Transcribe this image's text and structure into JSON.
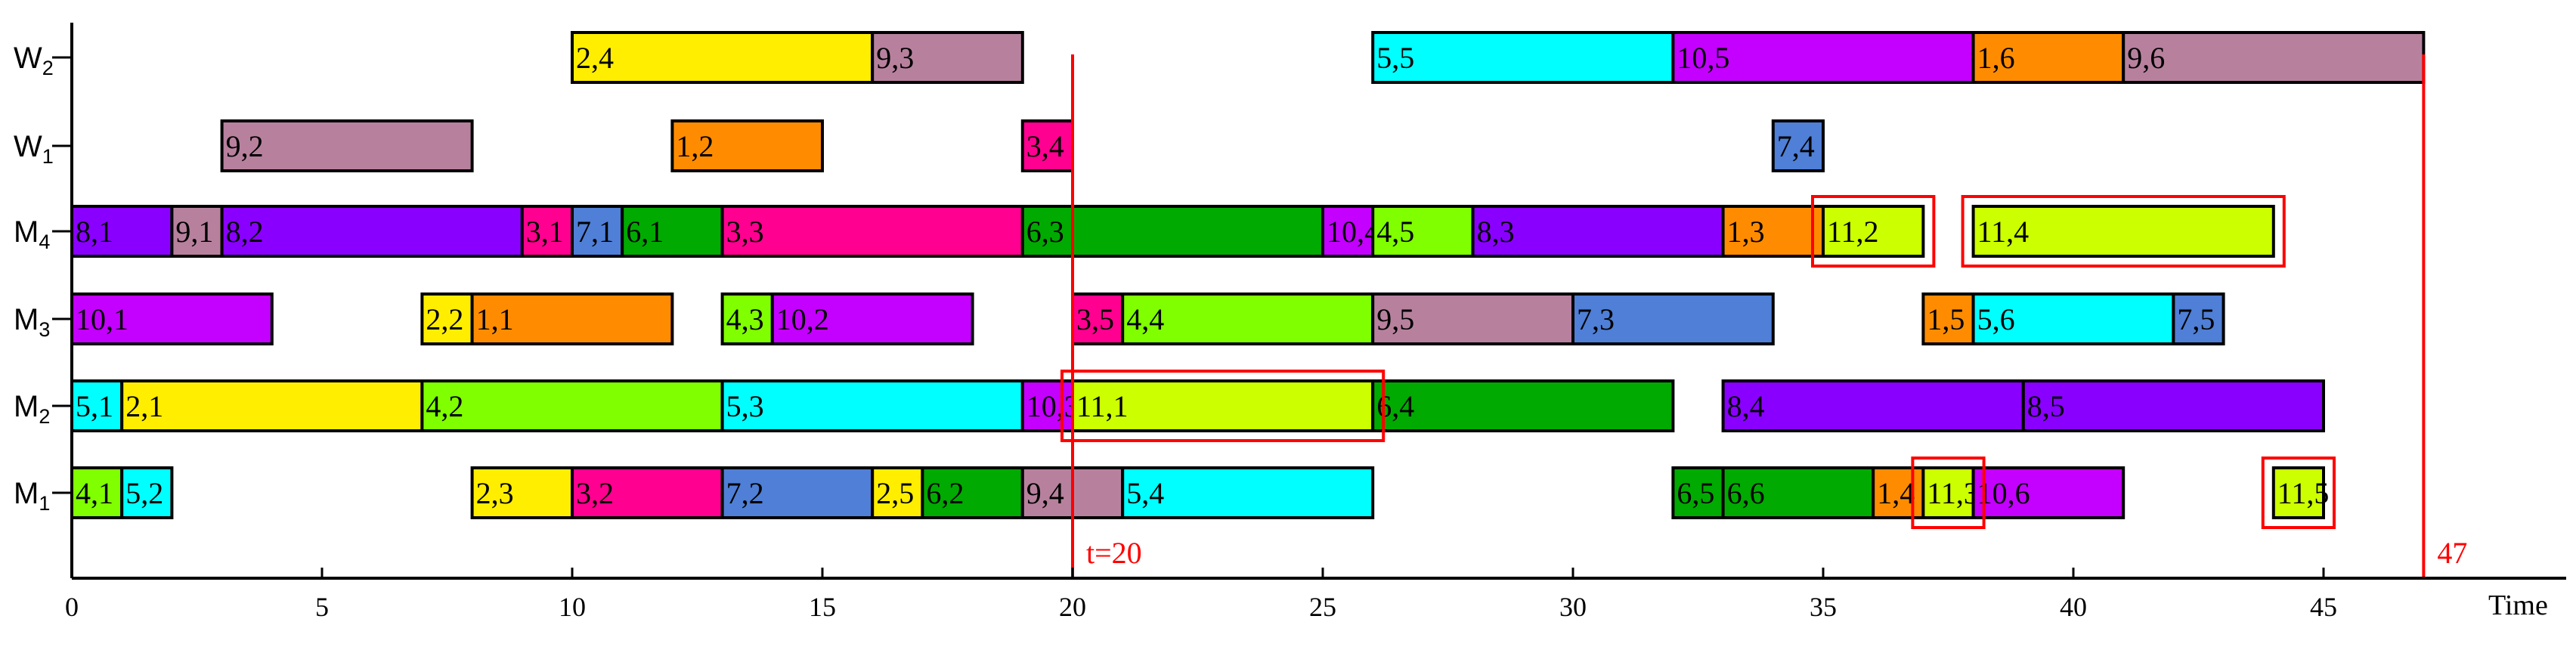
{
  "chart_data": {
    "type": "gantt",
    "xlabel": "Time",
    "xlim": [
      0,
      50
    ],
    "xticks": [
      0,
      5,
      10,
      15,
      20,
      25,
      30,
      35,
      40,
      45
    ],
    "rows": [
      {
        "id": "W2",
        "base": "W",
        "sub": "2"
      },
      {
        "id": "W1",
        "base": "W",
        "sub": "1"
      },
      {
        "id": "M4",
        "base": "M",
        "sub": "4"
      },
      {
        "id": "M3",
        "base": "M",
        "sub": "3"
      },
      {
        "id": "M2",
        "base": "M",
        "sub": "2"
      },
      {
        "id": "M1",
        "base": "M",
        "sub": "1"
      }
    ],
    "tasks": [
      {
        "row": "W2",
        "start": 10,
        "end": 16,
        "label": "2,4",
        "color": "#ffee00"
      },
      {
        "row": "W2",
        "start": 16,
        "end": 19,
        "label": "9,3",
        "color": "#b7819e"
      },
      {
        "row": "W2",
        "start": 26,
        "end": 32,
        "label": "5,5",
        "color": "#00ffff"
      },
      {
        "row": "W2",
        "start": 32,
        "end": 38,
        "label": "10,5",
        "color": "#c400ff"
      },
      {
        "row": "W2",
        "start": 38,
        "end": 41,
        "label": "1,6",
        "color": "#ff8c00"
      },
      {
        "row": "W2",
        "start": 41,
        "end": 47,
        "label": "9,6",
        "color": "#b7819e"
      },
      {
        "row": "W1",
        "start": 3,
        "end": 8,
        "label": "9,2",
        "color": "#b7819e"
      },
      {
        "row": "W1",
        "start": 12,
        "end": 15,
        "label": "1,2",
        "color": "#ff8c00"
      },
      {
        "row": "W1",
        "start": 19,
        "end": 20,
        "label": "3,4",
        "color": "#ff0090"
      },
      {
        "row": "W1",
        "start": 34,
        "end": 35,
        "label": "7,4",
        "color": "#4f7fd6"
      },
      {
        "row": "M4",
        "start": 0,
        "end": 2,
        "label": "8,1",
        "color": "#8a00ff"
      },
      {
        "row": "M4",
        "start": 2,
        "end": 3,
        "label": "9,1",
        "color": "#b7819e"
      },
      {
        "row": "M4",
        "start": 3,
        "end": 9,
        "label": "8,2",
        "color": "#8a00ff"
      },
      {
        "row": "M4",
        "start": 9,
        "end": 10,
        "label": "3,1",
        "color": "#ff0090"
      },
      {
        "row": "M4",
        "start": 10,
        "end": 11,
        "label": "7,1",
        "color": "#4f7fd6"
      },
      {
        "row": "M4",
        "start": 11,
        "end": 13,
        "label": "6,1",
        "color": "#00aa00"
      },
      {
        "row": "M4",
        "start": 13,
        "end": 19,
        "label": "3,3",
        "color": "#ff0090"
      },
      {
        "row": "M4",
        "start": 19,
        "end": 25,
        "label": "6,3",
        "color": "#00aa00"
      },
      {
        "row": "M4",
        "start": 25,
        "end": 26,
        "label": "10,4",
        "color": "#c400ff"
      },
      {
        "row": "M4",
        "start": 26,
        "end": 28,
        "label": "4,5",
        "color": "#80ff00"
      },
      {
        "row": "M4",
        "start": 28,
        "end": 33,
        "label": "8,3",
        "color": "#8a00ff"
      },
      {
        "row": "M4",
        "start": 33,
        "end": 35,
        "label": "1,3",
        "color": "#ff8c00"
      },
      {
        "row": "M4",
        "start": 35,
        "end": 37,
        "label": "11,2",
        "color": "#ccff00",
        "highlight": true
      },
      {
        "row": "M4",
        "start": 38,
        "end": 44,
        "label": "11,4",
        "color": "#ccff00",
        "highlight": true
      },
      {
        "row": "M3",
        "start": 0,
        "end": 4,
        "label": "10,1",
        "color": "#c400ff"
      },
      {
        "row": "M3",
        "start": 7,
        "end": 8,
        "label": "2,2",
        "color": "#ffee00"
      },
      {
        "row": "M3",
        "start": 8,
        "end": 12,
        "label": "1,1",
        "color": "#ff8c00"
      },
      {
        "row": "M3",
        "start": 13,
        "end": 14,
        "label": "4,3",
        "color": "#80ff00"
      },
      {
        "row": "M3",
        "start": 14,
        "end": 18,
        "label": "10,2",
        "color": "#c400ff"
      },
      {
        "row": "M3",
        "start": 20,
        "end": 21,
        "label": "3,5",
        "color": "#ff0090"
      },
      {
        "row": "M3",
        "start": 21,
        "end": 26,
        "label": "4,4",
        "color": "#80ff00"
      },
      {
        "row": "M3",
        "start": 26,
        "end": 30,
        "label": "9,5",
        "color": "#b7819e"
      },
      {
        "row": "M3",
        "start": 30,
        "end": 34,
        "label": "7,3",
        "color": "#4f7fd6"
      },
      {
        "row": "M3",
        "start": 37,
        "end": 38,
        "label": "1,5",
        "color": "#ff8c00"
      },
      {
        "row": "M3",
        "start": 38,
        "end": 42,
        "label": "5,6",
        "color": "#00ffff"
      },
      {
        "row": "M3",
        "start": 42,
        "end": 43,
        "label": "7,5",
        "color": "#4f7fd6"
      },
      {
        "row": "M2",
        "start": 0,
        "end": 1,
        "label": "5,1",
        "color": "#00ffff"
      },
      {
        "row": "M2",
        "start": 1,
        "end": 7,
        "label": "2,1",
        "color": "#ffee00"
      },
      {
        "row": "M2",
        "start": 7,
        "end": 13,
        "label": "4,2",
        "color": "#80ff00"
      },
      {
        "row": "M2",
        "start": 13,
        "end": 19,
        "label": "5,3",
        "color": "#00ffff"
      },
      {
        "row": "M2",
        "start": 19,
        "end": 20,
        "label": "10,3",
        "color": "#c400ff"
      },
      {
        "row": "M2",
        "start": 20,
        "end": 26,
        "label": "11,1",
        "color": "#ccff00",
        "highlight": true
      },
      {
        "row": "M2",
        "start": 26,
        "end": 32,
        "label": "6,4",
        "color": "#00aa00"
      },
      {
        "row": "M2",
        "start": 33,
        "end": 39,
        "label": "8,4",
        "color": "#8a00ff"
      },
      {
        "row": "M2",
        "start": 39,
        "end": 45,
        "label": "8,5",
        "color": "#8a00ff"
      },
      {
        "row": "M1",
        "start": 0,
        "end": 1,
        "label": "4,1",
        "color": "#80ff00"
      },
      {
        "row": "M1",
        "start": 1,
        "end": 2,
        "label": "5,2",
        "color": "#00ffff"
      },
      {
        "row": "M1",
        "start": 8,
        "end": 10,
        "label": "2,3",
        "color": "#ffee00"
      },
      {
        "row": "M1",
        "start": 10,
        "end": 13,
        "label": "3,2",
        "color": "#ff0090"
      },
      {
        "row": "M1",
        "start": 13,
        "end": 16,
        "label": "7,2",
        "color": "#4f7fd6"
      },
      {
        "row": "M1",
        "start": 16,
        "end": 17,
        "label": "2,5",
        "color": "#ffee00"
      },
      {
        "row": "M1",
        "start": 17,
        "end": 19,
        "label": "6,2",
        "color": "#00aa00"
      },
      {
        "row": "M1",
        "start": 19,
        "end": 21,
        "label": "9,4",
        "color": "#b7819e"
      },
      {
        "row": "M1",
        "start": 21,
        "end": 26,
        "label": "5,4",
        "color": "#00ffff"
      },
      {
        "row": "M1",
        "start": 32,
        "end": 33,
        "label": "6,5",
        "color": "#00aa00"
      },
      {
        "row": "M1",
        "start": 33,
        "end": 36,
        "label": "6,6",
        "color": "#00aa00"
      },
      {
        "row": "M1",
        "start": 36,
        "end": 37,
        "label": "1,4",
        "color": "#ff8c00"
      },
      {
        "row": "M1",
        "start": 37,
        "end": 38,
        "label": "11,3",
        "color": "#ccff00",
        "highlight": true
      },
      {
        "row": "M1",
        "start": 38,
        "end": 41,
        "label": "10,6",
        "color": "#c400ff"
      },
      {
        "row": "M1",
        "start": 44,
        "end": 45,
        "label": "11,5",
        "color": "#ccff00",
        "highlight": true
      }
    ],
    "markers": [
      {
        "x": 20,
        "label": "t=20",
        "color": "#ff0000"
      },
      {
        "x": 47,
        "label": "47",
        "color": "#ff0000"
      }
    ]
  }
}
